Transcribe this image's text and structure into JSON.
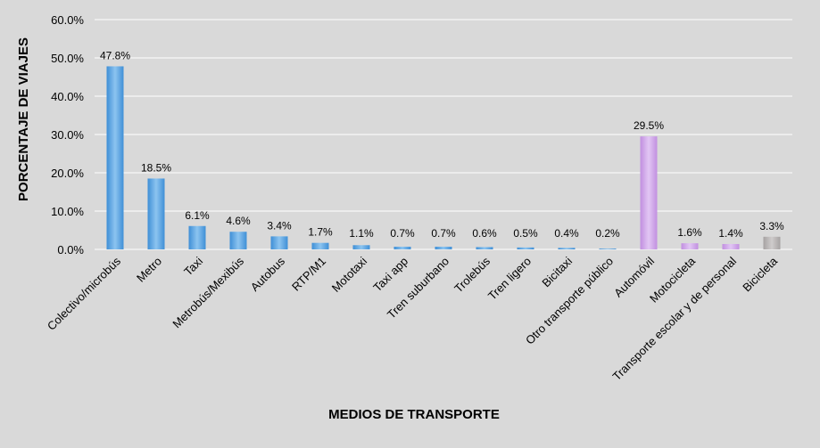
{
  "chart_data": {
    "type": "bar",
    "title": "",
    "xlabel": "MEDIOS DE TRANSPORTE",
    "ylabel": "PORCENTAJE DE VIAJES",
    "ylim": [
      0,
      60
    ],
    "yticks": [
      "0.0%",
      "10.0%",
      "20.0%",
      "30.0%",
      "40.0%",
      "50.0%",
      "60.0%"
    ],
    "grid": true,
    "legend": "none",
    "categories": [
      "Colectivo/microbús",
      "Metro",
      "Taxi",
      "Metrobús/Mexibús",
      "Autobus",
      "RTP/M1",
      "Mototaxi",
      "Taxi app",
      "Tren suburbano",
      "Trolebús",
      "Tren ligero",
      "Bicitaxi",
      "Otro transporte público",
      "Automóvil",
      "Motocicleta",
      "Transporte escolar y de personal",
      "Bicicleta"
    ],
    "values": [
      47.8,
      18.5,
      6.1,
      4.6,
      3.4,
      1.7,
      1.1,
      0.7,
      0.7,
      0.6,
      0.5,
      0.4,
      0.2,
      29.5,
      1.6,
      1.4,
      3.3
    ],
    "value_labels": [
      "47.8%",
      "18.5%",
      "6.1%",
      "4.6%",
      "3.4%",
      "1.7%",
      "1.1%",
      "0.7%",
      "0.7%",
      "0.6%",
      "0.5%",
      "0.4%",
      "0.2%",
      "29.5%",
      "1.6%",
      "1.4%",
      "3.3%"
    ],
    "groups": [
      "public",
      "public",
      "public",
      "public",
      "public",
      "public",
      "public",
      "public",
      "public",
      "public",
      "public",
      "public",
      "public",
      "private",
      "private",
      "private",
      "bicycle"
    ],
    "colors": {
      "public": "#3f8fd6",
      "public_light": "#8cc4f0",
      "private": "#c18fe0",
      "private_light": "#e2c6f4",
      "bicycle": "#a6a2a2",
      "bicycle_light": "#cfcccc",
      "grid": "#ffffff",
      "background": "#d9d9d9"
    }
  }
}
